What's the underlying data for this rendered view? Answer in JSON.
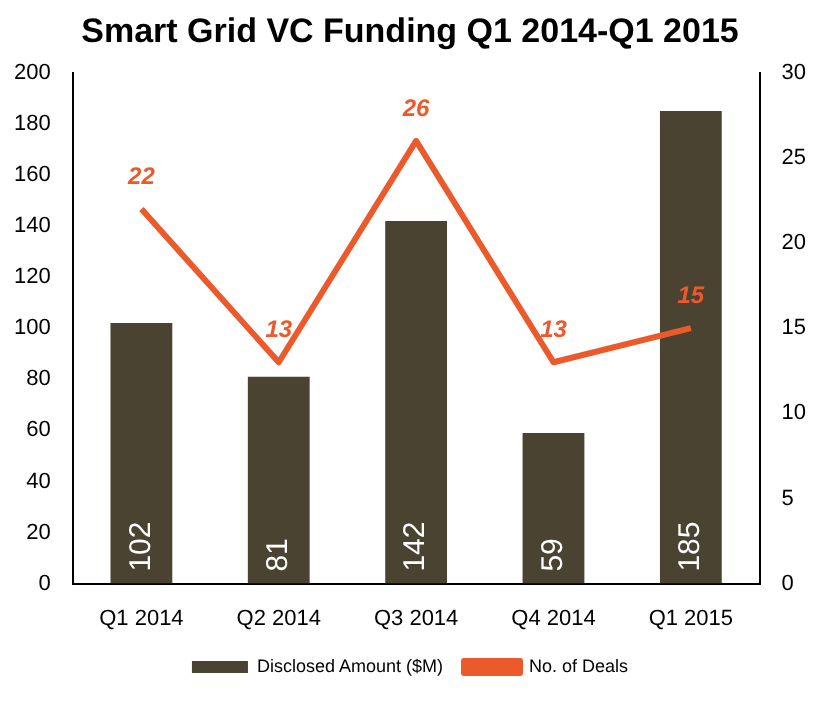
{
  "chart_data": {
    "type": "bar",
    "title": "Smart Grid VC Funding Q1 2014-Q1 2015",
    "categories": [
      "Q1 2014",
      "Q2 2014",
      "Q3 2014",
      "Q4 2014",
      "Q1 2015"
    ],
    "series": [
      {
        "name": "Disclosed Amount ($M)",
        "color": "#4b4331",
        "values": [
          102,
          81,
          142,
          59,
          185
        ]
      },
      {
        "name": "No. of Deals",
        "type": "line",
        "axis": "y2",
        "color": "#ec5a2c",
        "values": [
          22,
          13,
          26,
          13,
          15
        ]
      }
    ],
    "ylim": [
      0,
      200
    ],
    "yticks": [
      0,
      20,
      40,
      60,
      80,
      100,
      120,
      140,
      160,
      180,
      200
    ],
    "y2lim": [
      0,
      30
    ],
    "y2ticks": [
      0,
      5,
      10,
      15,
      20,
      25,
      30
    ],
    "data_labels": true,
    "legend": "bottom",
    "grid": false,
    "marker": "none"
  }
}
